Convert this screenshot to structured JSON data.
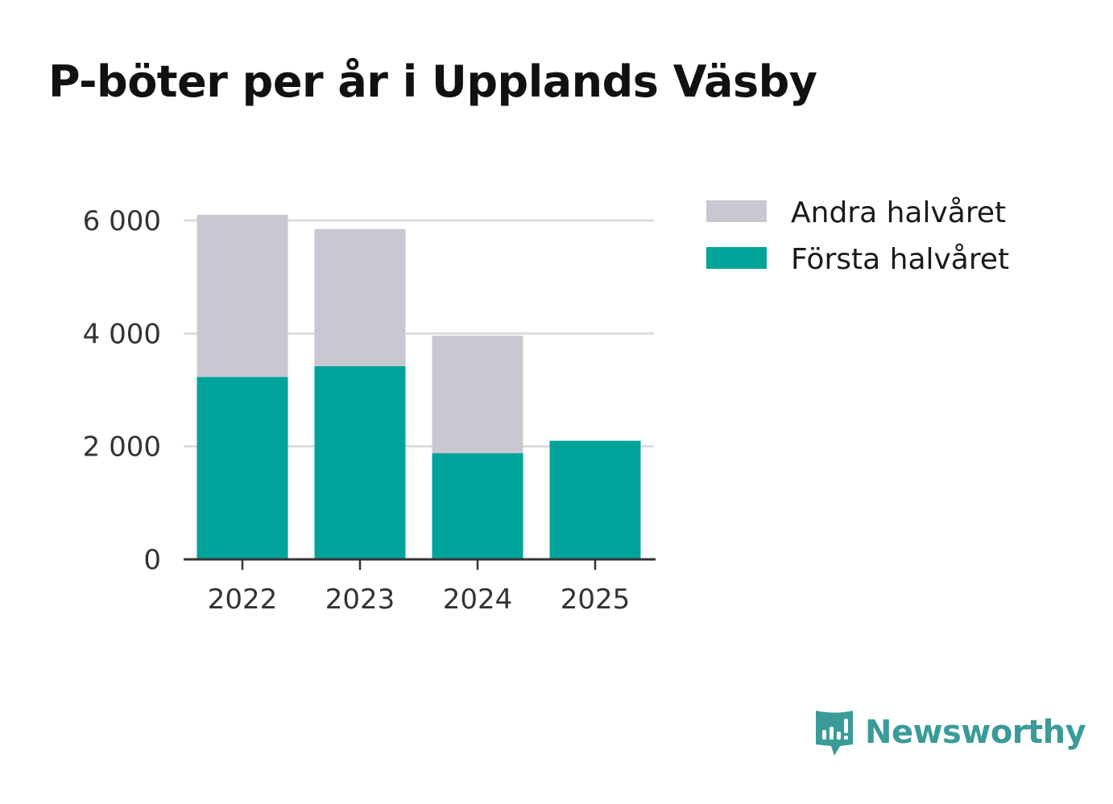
{
  "title": "P-böter per år i Upplands Väsby",
  "colors": {
    "first_half": "#00a39a",
    "second_half": "#c8c7d2",
    "grid": "#dddddd",
    "axis": "#333333",
    "brand": "#3a9b99"
  },
  "chart_data": {
    "type": "bar",
    "stacked": true,
    "title": "P-böter per år i Upplands Väsby",
    "xlabel": "",
    "ylabel": "",
    "categories": [
      "2022",
      "2023",
      "2024",
      "2025"
    ],
    "series": [
      {
        "name": "Första halvåret",
        "values": [
          3230,
          3420,
          1880,
          2100
        ]
      },
      {
        "name": "Andra halvåret",
        "values": [
          2870,
          2430,
          2080,
          0
        ]
      }
    ],
    "ylim": [
      0,
      6000
    ],
    "yticks": [
      0,
      2000,
      4000,
      6000
    ],
    "ytick_labels": [
      "0",
      "2 000",
      "4 000",
      "6 000"
    ],
    "grid": true,
    "legend": {
      "placement": "top-right",
      "entries": [
        "Andra halvåret",
        "Första halvåret"
      ]
    }
  },
  "branding": {
    "logo_text": "Newsworthy",
    "logo_icon": "newsworthy-speech-bubble-bar-icon"
  }
}
